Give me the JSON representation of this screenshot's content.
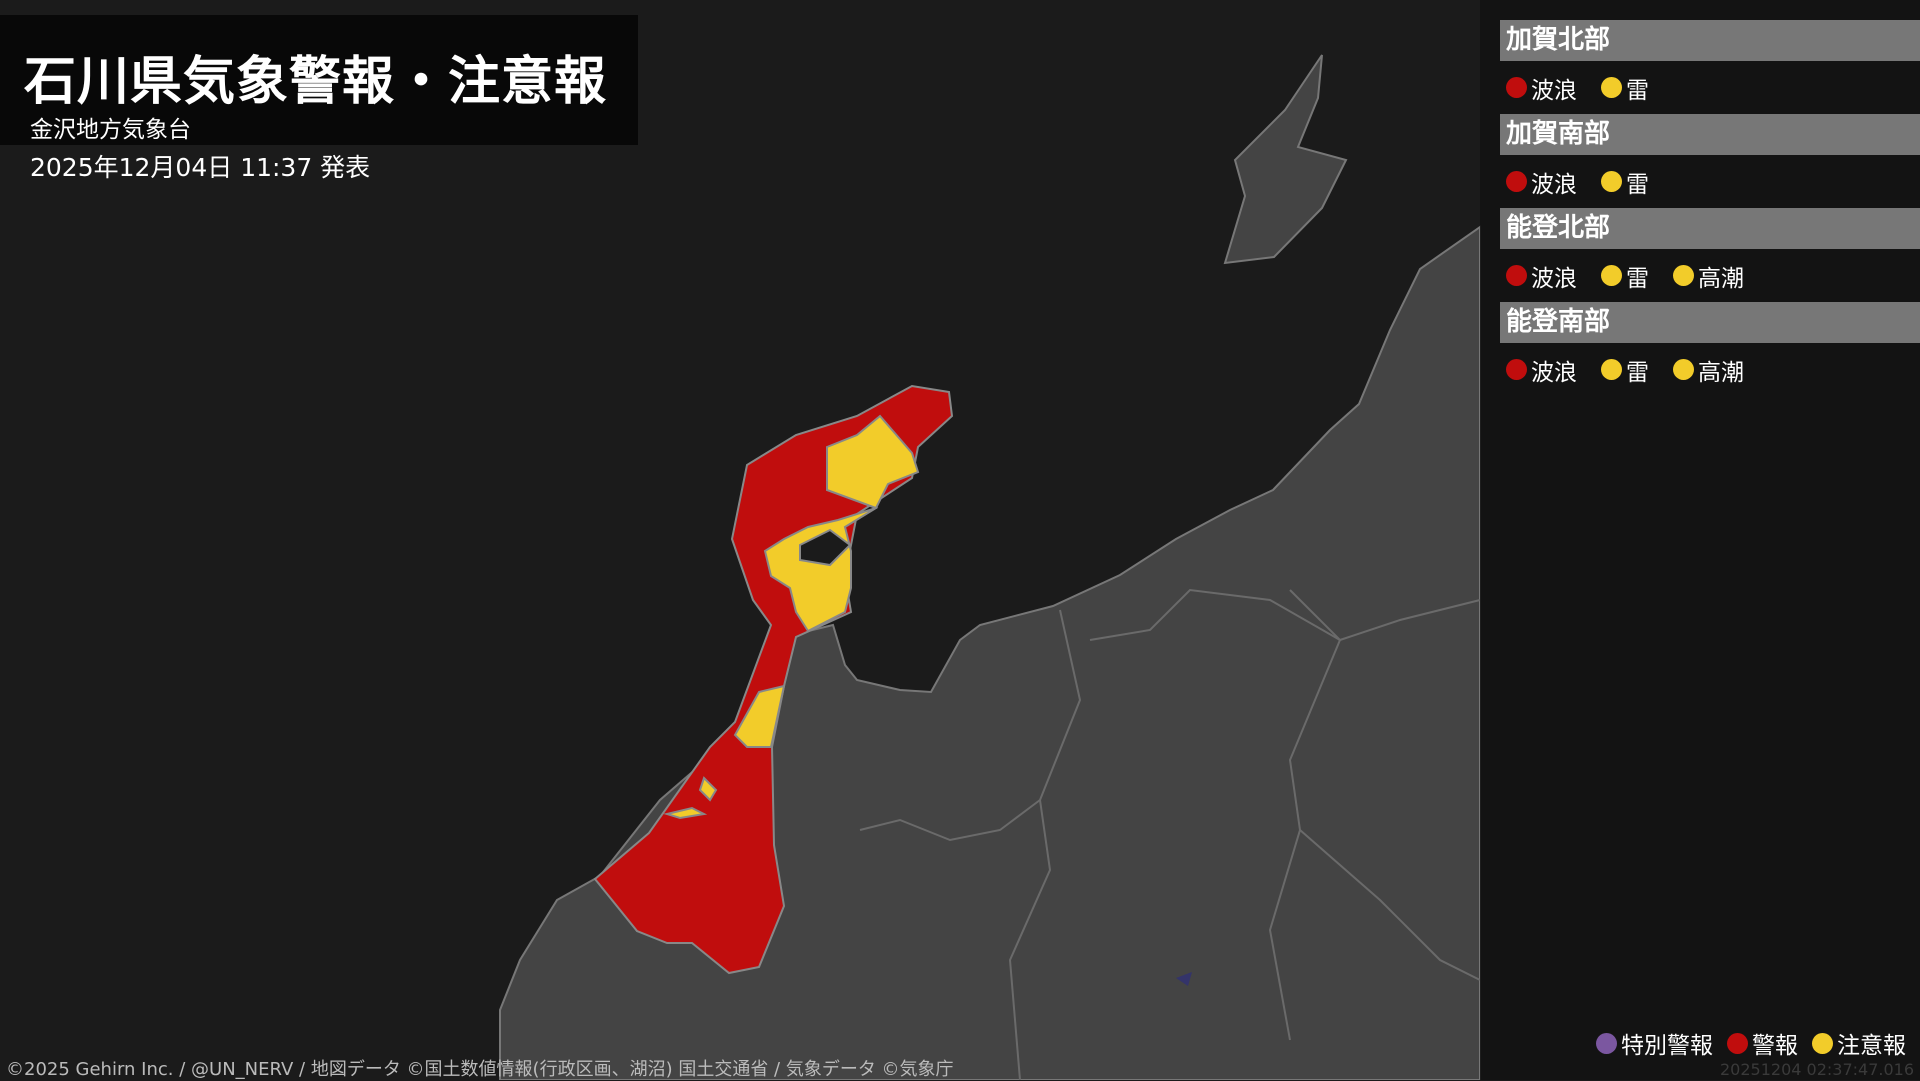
{
  "header": {
    "title": "石川県気象警報・注意報",
    "office": "金沢地方気象台",
    "issued": "2025年12月04日 11:37 発表"
  },
  "colors": {
    "special_warning": "#7b57a0",
    "warning": "#c00d0d",
    "advisory": "#f2cc2a",
    "land": "#444444",
    "sea": "#1b1b1b"
  },
  "areas": [
    {
      "name": "加賀北部",
      "items": [
        {
          "label": "波浪",
          "level": "warning"
        },
        {
          "label": "雷",
          "level": "advisory"
        }
      ]
    },
    {
      "name": "加賀南部",
      "items": [
        {
          "label": "波浪",
          "level": "warning"
        },
        {
          "label": "雷",
          "level": "advisory"
        }
      ]
    },
    {
      "name": "能登北部",
      "items": [
        {
          "label": "波浪",
          "level": "warning"
        },
        {
          "label": "雷",
          "level": "advisory"
        },
        {
          "label": "高潮",
          "level": "advisory"
        }
      ]
    },
    {
      "name": "能登南部",
      "items": [
        {
          "label": "波浪",
          "level": "warning"
        },
        {
          "label": "雷",
          "level": "advisory"
        },
        {
          "label": "高潮",
          "level": "advisory"
        }
      ]
    }
  ],
  "legend": [
    {
      "label": "特別警報",
      "level": "special_warning"
    },
    {
      "label": "警報",
      "level": "warning"
    },
    {
      "label": "注意報",
      "level": "advisory"
    }
  ],
  "footer": {
    "credit": "©2025 Gehirn Inc. / @UN_NERV / 地図データ ©国土数値情報(行政区画、湖沼) 国土交通省 / 気象データ ©気象庁",
    "timestamp": "20251204 02:37:47.016"
  }
}
